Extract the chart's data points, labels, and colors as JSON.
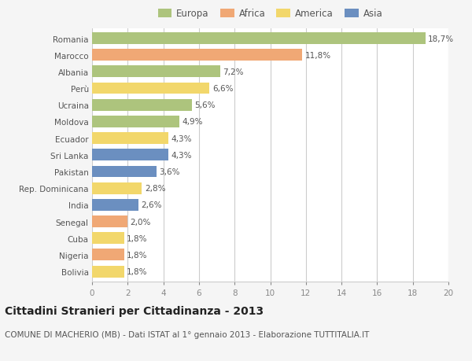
{
  "countries": [
    "Romania",
    "Marocco",
    "Albania",
    "Perù",
    "Ucraina",
    "Moldova",
    "Ecuador",
    "Sri Lanka",
    "Pakistan",
    "Rep. Dominicana",
    "India",
    "Senegal",
    "Cuba",
    "Nigeria",
    "Bolivia"
  ],
  "values": [
    18.7,
    11.8,
    7.2,
    6.6,
    5.6,
    4.9,
    4.3,
    4.3,
    3.6,
    2.8,
    2.6,
    2.0,
    1.8,
    1.8,
    1.8
  ],
  "labels": [
    "18,7%",
    "11,8%",
    "7,2%",
    "6,6%",
    "5,6%",
    "4,9%",
    "4,3%",
    "4,3%",
    "3,6%",
    "2,8%",
    "2,6%",
    "2,0%",
    "1,8%",
    "1,8%",
    "1,8%"
  ],
  "continent": [
    "Europa",
    "Africa",
    "Europa",
    "America",
    "Europa",
    "Europa",
    "America",
    "Asia",
    "Asia",
    "America",
    "Asia",
    "Africa",
    "America",
    "Africa",
    "America"
  ],
  "colors": {
    "Europa": "#adc47d",
    "Africa": "#f0a875",
    "America": "#f2d76b",
    "Asia": "#6b8fc0"
  },
  "legend_order": [
    "Europa",
    "Africa",
    "America",
    "Asia"
  ],
  "xlim": [
    0,
    20
  ],
  "xticks": [
    0,
    2,
    4,
    6,
    8,
    10,
    12,
    14,
    16,
    18,
    20
  ],
  "title": "Cittadini Stranieri per Cittadinanza - 2013",
  "subtitle": "COMUNE DI MACHERIO (MB) - Dati ISTAT al 1° gennaio 2013 - Elaborazione TUTTITALIA.IT",
  "bg_color": "#f5f5f5",
  "bar_bg_color": "#ffffff",
  "grid_color": "#cccccc",
  "title_fontsize": 10,
  "subtitle_fontsize": 7.5,
  "label_fontsize": 7.5,
  "tick_fontsize": 7.5,
  "legend_fontsize": 8.5
}
